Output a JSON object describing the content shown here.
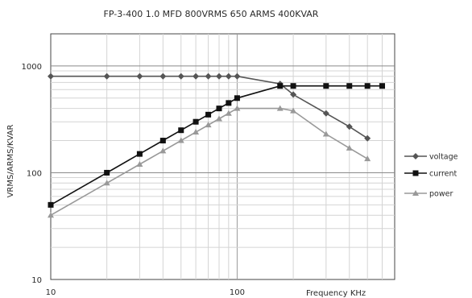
{
  "chart_data": {
    "type": "line",
    "title": "FP-3-400 1.0 MFD 800VRMS 650 ARMS 400KVAR",
    "xlabel": "Frequency KHz",
    "ylabel": "VRMS/ARMS/KVAR",
    "x_scale": "log",
    "y_scale": "log",
    "xlim": [
      10,
      700
    ],
    "ylim": [
      10,
      2000
    ],
    "x_ticks": [
      "10",
      "100"
    ],
    "y_ticks": [
      "10",
      "100",
      "1000"
    ],
    "grid": true,
    "legend_position": "right",
    "x": [
      10,
      20,
      30,
      40,
      50,
      60,
      70,
      80,
      90,
      100,
      170,
      200,
      300,
      400,
      500,
      600
    ],
    "series": [
      {
        "name": "voltage",
        "color": "#555555",
        "marker": "diamond",
        "values": [
          800,
          800,
          800,
          800,
          800,
          800,
          800,
          800,
          800,
          800,
          680,
          540,
          360,
          270,
          210,
          null
        ]
      },
      {
        "name": "current",
        "color": "#111111",
        "marker": "square",
        "values": [
          50,
          100,
          150,
          200,
          250,
          300,
          350,
          400,
          450,
          500,
          650,
          650,
          650,
          650,
          650,
          650
        ]
      },
      {
        "name": "power",
        "color": "#999999",
        "marker": "triangle",
        "values": [
          40,
          80,
          120,
          160,
          200,
          240,
          280,
          320,
          360,
          400,
          400,
          380,
          230,
          170,
          135,
          null
        ]
      }
    ]
  }
}
